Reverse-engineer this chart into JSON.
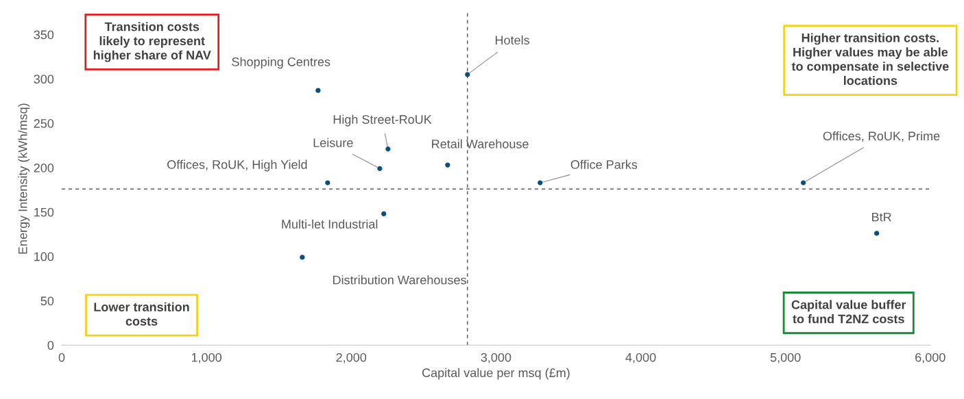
{
  "chart_data": {
    "type": "scatter",
    "xlabel": "Capital value per msq (£m)",
    "ylabel": "Energy Intensity (kWh/msq)",
    "x": [
      1771,
      2803,
      2254,
      2197,
      2666,
      1837,
      3305,
      5123,
      2225,
      1662,
      5630
    ],
    "values": [
      287,
      305,
      221,
      199,
      203,
      183,
      183,
      183,
      148,
      99,
      126
    ],
    "color": "#0b4f7c",
    "marker": "circle",
    "grid": false,
    "xlim": [
      0,
      6000
    ],
    "xticks": [
      0,
      {
        "value": 1000,
        "label": "1,000"
      },
      {
        "value": 2000,
        "label": "2,000"
      },
      {
        "value": 3000,
        "label": "3,000"
      },
      {
        "value": 4000,
        "label": "4,000"
      },
      {
        "value": 5000,
        "label": "5,000"
      },
      {
        "value": 6000,
        "label": "6,000"
      }
    ],
    "ylim": [
      0,
      375
    ],
    "yticks": [
      0,
      50,
      100,
      150,
      200,
      250,
      300,
      350
    ],
    "ref_lines": [
      {
        "axis": "x",
        "value": 2803,
        "line_style": "dashed",
        "color": "#404040"
      },
      {
        "axis": "y",
        "value": 176,
        "line_style": "dashed",
        "color": "#404040"
      }
    ],
    "annotations": [
      {
        "text": "Shopping Centres",
        "x": 1771,
        "y": 287
      },
      {
        "text": "Hotels",
        "x": 2803,
        "y": 305
      },
      {
        "text": "High Street-RoUK",
        "x": 2254,
        "y": 221
      },
      {
        "text": "Leisure",
        "x": 2197,
        "y": 199
      },
      {
        "text": "Retail Warehouse",
        "x": 2666,
        "y": 203
      },
      {
        "text": "Offices, RoUK, High Yield",
        "x": 1837,
        "y": 183
      },
      {
        "text": "Office Parks",
        "x": 3305,
        "y": 183
      },
      {
        "text": "Offices, RoUK, Prime",
        "x": 5123,
        "y": 183
      },
      {
        "text": "Multi-let Industrial",
        "x": 2225,
        "y": 148
      },
      {
        "text": "Distribution Warehouses",
        "x": 1662,
        "y": 99
      },
      {
        "text": "BtR",
        "x": 5630,
        "y": 126
      },
      "Transition costs\nlikely to represent\nhigher share of NAV",
      "Higher transition costs.\nHigher values may be able\nto compensate in selective\nlocations",
      "Lower transition\ncosts",
      "Capital value buffer\nto fund T2NZ costs"
    ]
  }
}
